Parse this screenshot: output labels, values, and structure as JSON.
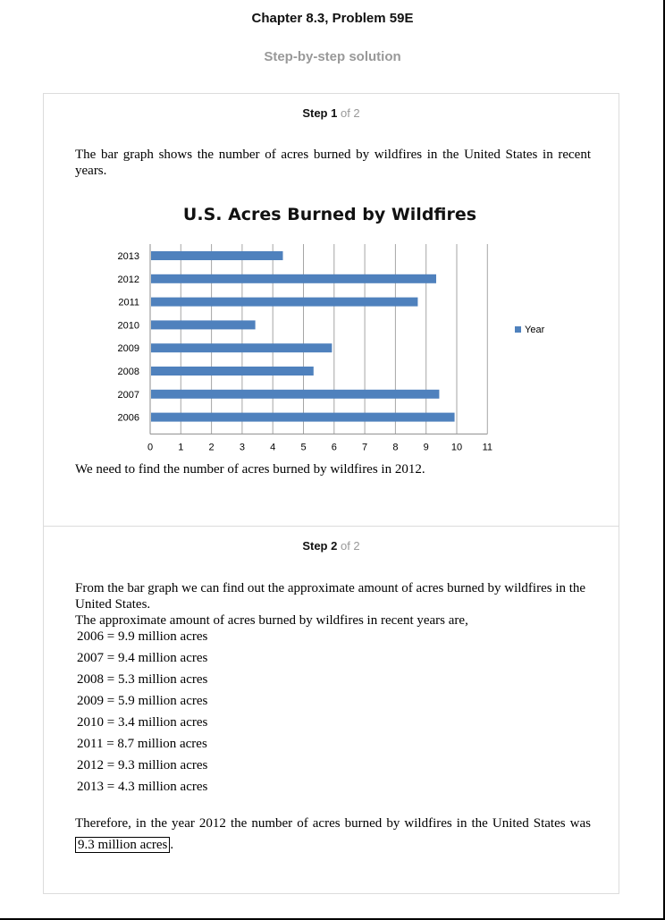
{
  "header": {
    "title": "Chapter 8.3, Problem 59E",
    "subtitle": "Step-by-step solution"
  },
  "step1": {
    "label": "Step 1",
    "of": "of 2",
    "intro": "The bar graph shows the number of acres burned by wildfires in the United States in recent years.",
    "need_prefix": "We need to find the number of acres burned by wildfires in ",
    "need_year": "2012",
    "need_suffix": "."
  },
  "step2": {
    "label": "Step 2",
    "of": "of 2",
    "para1": "From the bar graph we can find out the approximate amount of acres burned by wildfires in the United States.",
    "para2": "The approximate amount of acres burned by wildfires in recent years are,",
    "equations": [
      "2006 = 9.9 million acres",
      "2007 = 9.4 million acres",
      "2008 = 5.3 million acres",
      "2009 = 5.9 million acres",
      "2010 = 3.4 million acres",
      "2011 = 8.7 million acres",
      "2012 = 9.3 million acres",
      "2013 = 4.3 million acres"
    ],
    "conclusion_prefix": "Therefore, in the year ",
    "conclusion_year": "2012",
    "conclusion_mid": " the number of acres burned by wildfires in the United States was ",
    "answer": "9.3 million acres",
    "conclusion_suffix": "."
  },
  "chart_data": {
    "type": "bar",
    "orientation": "horizontal",
    "title": "U.S. Acres Burned by Wildfires",
    "categories": [
      "2006",
      "2007",
      "2008",
      "2009",
      "2010",
      "2011",
      "2012",
      "2013"
    ],
    "series": [
      {
        "name": "Year",
        "values": [
          9.9,
          9.4,
          5.3,
          5.9,
          3.4,
          8.7,
          9.3,
          4.3
        ],
        "color": "#4f81bd"
      }
    ],
    "xlim": [
      0,
      11
    ],
    "xticks": [
      0,
      1,
      2,
      3,
      4,
      5,
      6,
      7,
      8,
      9,
      10,
      11
    ],
    "grid": true,
    "legend": "right"
  }
}
